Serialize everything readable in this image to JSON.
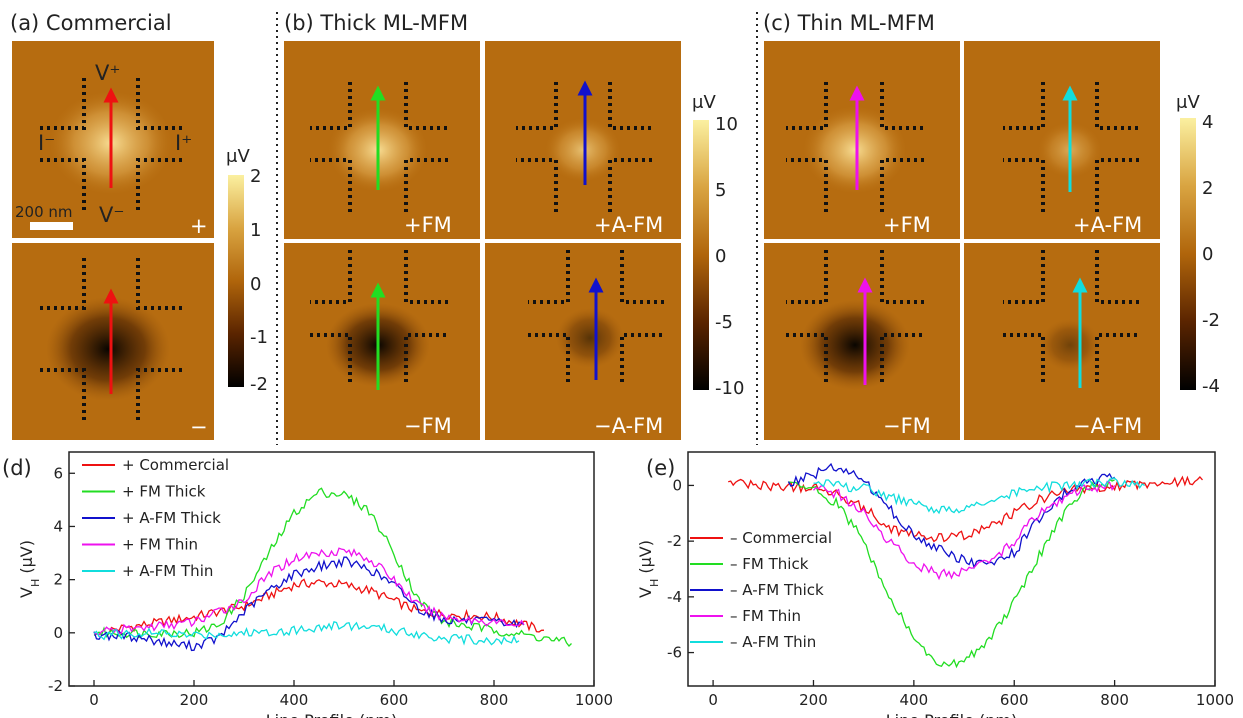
{
  "colors": {
    "commercial": "#ee1111",
    "fm_thick": "#22dd22",
    "afm_thick": "#1111cc",
    "fm_thin": "#ee11ee",
    "afm_thin": "#11dddd",
    "colormap": [
      "#000000",
      "#5a2400",
      "#b0650b",
      "#d9a441",
      "#fbf0a0"
    ]
  },
  "panels": {
    "a": {
      "title": "(a) Commercial",
      "labels": {
        "vplus": "V⁺",
        "iminus": "I⁻",
        "iplus": "I⁺",
        "vminus": "V⁻",
        "scalebar": "200 nm",
        "plus": "+",
        "minus": "−"
      },
      "colorbar": {
        "unit": "μV",
        "ticks": [
          "2",
          "1",
          "0",
          "-1",
          "-2"
        ]
      }
    },
    "b": {
      "title": "(b) Thick ML-MFM",
      "tiles": [
        "+FM",
        "+A-FM",
        "−FM",
        "−A-FM"
      ],
      "colorbar": {
        "unit": "μV",
        "ticks": [
          "10",
          "5",
          "0",
          "-5",
          "-10"
        ]
      }
    },
    "c": {
      "title": "(c) Thin ML-MFM",
      "tiles": [
        "+FM",
        "+A-FM",
        "−FM",
        "−A-FM"
      ],
      "colorbar": {
        "unit": "μV",
        "ticks": [
          "4",
          "2",
          "0",
          "-2",
          "-4"
        ]
      }
    }
  },
  "chart_data": [
    {
      "panel": "(d)",
      "type": "line",
      "xlabel": "Line Profile (nm)",
      "ylabel": "V",
      "ylabel_sub": "H",
      "ylabel_unit": " (μV)",
      "xlim": [
        -50,
        1000
      ],
      "ylim": [
        -2,
        6.8
      ],
      "xticks": [
        0,
        200,
        400,
        600,
        800,
        1000
      ],
      "yticks": [
        -2,
        0,
        2,
        4,
        6
      ],
      "legend_position": "top-left",
      "series": [
        {
          "name": "+ Commercial",
          "color_key": "commercial",
          "points": [
            [
              30,
              0.1
            ],
            [
              100,
              0.3
            ],
            [
              200,
              0.6
            ],
            [
              300,
              1.0
            ],
            [
              400,
              1.8
            ],
            [
              450,
              1.9
            ],
            [
              500,
              1.8
            ],
            [
              550,
              1.6
            ],
            [
              600,
              1.2
            ],
            [
              650,
              0.8
            ],
            [
              700,
              0.7
            ],
            [
              800,
              0.6
            ],
            [
              900,
              0.1
            ]
          ]
        },
        {
          "name": "+ FM Thick",
          "color_key": "fm_thick",
          "points": [
            [
              0,
              0
            ],
            [
              100,
              0
            ],
            [
              200,
              0
            ],
            [
              250,
              0.3
            ],
            [
              300,
              1.4
            ],
            [
              350,
              3.0
            ],
            [
              400,
              4.5
            ],
            [
              450,
              5.3
            ],
            [
              500,
              5.2
            ],
            [
              550,
              4.6
            ],
            [
              600,
              3.0
            ],
            [
              650,
              1.2
            ],
            [
              700,
              0.4
            ],
            [
              800,
              0.1
            ],
            [
              900,
              -0.2
            ],
            [
              955,
              -0.4
            ]
          ]
        },
        {
          "name": "+ A-FM Thick",
          "color_key": "afm_thick",
          "points": [
            [
              0,
              -0.1
            ],
            [
              50,
              -0.1
            ],
            [
              100,
              -0.2
            ],
            [
              150,
              -0.4
            ],
            [
              200,
              -0.5
            ],
            [
              250,
              -0.2
            ],
            [
              300,
              0.8
            ],
            [
              350,
              1.6
            ],
            [
              400,
              2.2
            ],
            [
              450,
              2.5
            ],
            [
              500,
              2.7
            ],
            [
              550,
              2.4
            ],
            [
              600,
              1.8
            ],
            [
              650,
              0.9
            ],
            [
              700,
              0.5
            ],
            [
              800,
              0.4
            ],
            [
              860,
              0.3
            ]
          ]
        },
        {
          "name": "+ FM Thin",
          "color_key": "fm_thin",
          "points": [
            [
              0,
              0
            ],
            [
              100,
              0.2
            ],
            [
              200,
              0.4
            ],
            [
              300,
              1.2
            ],
            [
              350,
              2.2
            ],
            [
              400,
              2.8
            ],
            [
              450,
              3.0
            ],
            [
              500,
              3.1
            ],
            [
              550,
              2.8
            ],
            [
              600,
              2.0
            ],
            [
              650,
              1.0
            ],
            [
              700,
              0.6
            ],
            [
              800,
              0.4
            ],
            [
              860,
              0.3
            ]
          ]
        },
        {
          "name": "+ A-FM Thin",
          "color_key": "afm_thin",
          "points": [
            [
              0,
              -0.1
            ],
            [
              100,
              0
            ],
            [
              200,
              -0.1
            ],
            [
              300,
              0
            ],
            [
              400,
              0.1
            ],
            [
              450,
              0.2
            ],
            [
              500,
              0.3
            ],
            [
              550,
              0.2
            ],
            [
              600,
              0.1
            ],
            [
              700,
              -0.2
            ],
            [
              800,
              -0.3
            ],
            [
              850,
              -0.3
            ]
          ]
        }
      ]
    },
    {
      "panel": "(e)",
      "type": "line",
      "xlabel": "Line Profile (nm)",
      "ylabel": "V",
      "ylabel_sub": "H",
      "ylabel_unit": " (μV)",
      "xlim": [
        -50,
        1000
      ],
      "ylim": [
        -7.2,
        1.2
      ],
      "xticks": [
        0,
        200,
        400,
        600,
        800,
        1000
      ],
      "yticks": [
        -6,
        -4,
        -2,
        0
      ],
      "legend_position": "bottom-left",
      "series": [
        {
          "name": "– Commercial",
          "color_key": "commercial",
          "points": [
            [
              30,
              0.1
            ],
            [
              100,
              0
            ],
            [
              200,
              -0.1
            ],
            [
              250,
              -0.3
            ],
            [
              300,
              -0.8
            ],
            [
              350,
              -1.5
            ],
            [
              400,
              -1.8
            ],
            [
              450,
              -1.9
            ],
            [
              500,
              -1.8
            ],
            [
              550,
              -1.5
            ],
            [
              600,
              -1.0
            ],
            [
              650,
              -0.5
            ],
            [
              700,
              -0.2
            ],
            [
              800,
              0
            ],
            [
              900,
              0.1
            ],
            [
              975,
              0.2
            ]
          ]
        },
        {
          "name": "– FM Thick",
          "color_key": "fm_thick",
          "points": [
            [
              150,
              0
            ],
            [
              200,
              -0.1
            ],
            [
              250,
              -0.7
            ],
            [
              300,
              -2.0
            ],
            [
              350,
              -4.0
            ],
            [
              400,
              -5.5
            ],
            [
              450,
              -6.5
            ],
            [
              500,
              -6.3
            ],
            [
              550,
              -5.5
            ],
            [
              600,
              -4.2
            ],
            [
              650,
              -2.5
            ],
            [
              700,
              -1.0
            ],
            [
              750,
              0
            ],
            [
              800,
              0.2
            ]
          ]
        },
        {
          "name": "– A-FM Thick",
          "color_key": "afm_thick",
          "points": [
            [
              150,
              0.1
            ],
            [
              200,
              0.4
            ],
            [
              250,
              0.7
            ],
            [
              300,
              0.2
            ],
            [
              350,
              -0.8
            ],
            [
              400,
              -1.8
            ],
            [
              450,
              -2.3
            ],
            [
              500,
              -2.7
            ],
            [
              550,
              -2.9
            ],
            [
              600,
              -2.4
            ],
            [
              650,
              -1.2
            ],
            [
              700,
              -0.3
            ],
            [
              750,
              0.2
            ],
            [
              800,
              0.3
            ]
          ]
        },
        {
          "name": "– FM Thin",
          "color_key": "fm_thin",
          "points": [
            [
              200,
              -0.1
            ],
            [
              250,
              -0.3
            ],
            [
              300,
              -1.0
            ],
            [
              350,
              -2.0
            ],
            [
              400,
              -2.8
            ],
            [
              450,
              -3.2
            ],
            [
              500,
              -3.1
            ],
            [
              550,
              -2.8
            ],
            [
              600,
              -2.0
            ],
            [
              650,
              -1.0
            ],
            [
              700,
              -0.4
            ],
            [
              750,
              -0.1
            ],
            [
              800,
              0
            ]
          ]
        },
        {
          "name": "– A-FM Thin",
          "color_key": "afm_thin",
          "points": [
            [
              200,
              0.1
            ],
            [
              300,
              -0.1
            ],
            [
              350,
              -0.4
            ],
            [
              400,
              -0.7
            ],
            [
              450,
              -0.9
            ],
            [
              500,
              -0.8
            ],
            [
              550,
              -0.6
            ],
            [
              600,
              -0.3
            ],
            [
              650,
              -0.1
            ],
            [
              700,
              0
            ],
            [
              800,
              0.1
            ],
            [
              860,
              0
            ]
          ]
        }
      ]
    }
  ]
}
